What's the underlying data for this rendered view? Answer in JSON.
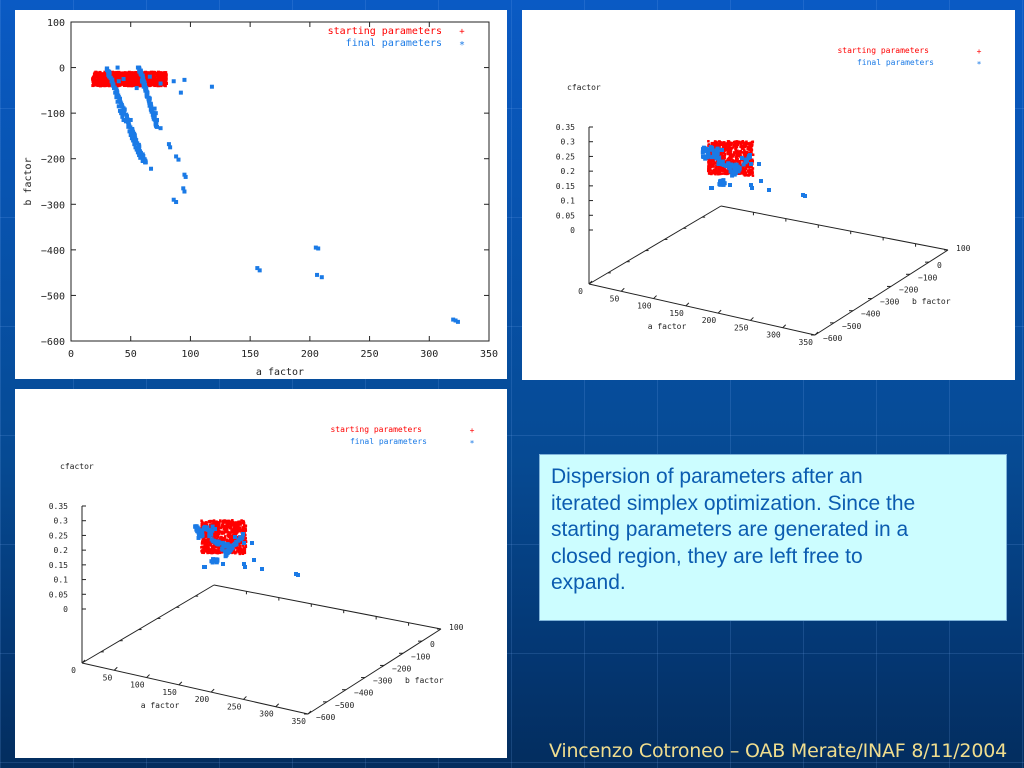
{
  "colors": {
    "starting": "#ff0000",
    "final": "#1a7ae6",
    "axis": "#222222"
  },
  "caption": {
    "lines": [
      "Dispersion of parameters after an",
      "iterated simplex optimization. Since the",
      "starting parameters are generated in a",
      "closed region, they are left free to",
      "expand."
    ]
  },
  "footer": {
    "text": "Vincenzo Cotroneo – OAB Merate/INAF 8/11/2004"
  },
  "chart_data": [
    {
      "type": "scatter",
      "title": "",
      "xlabel": "a factor",
      "ylabel": "b factor",
      "xlim": [
        0,
        350
      ],
      "ylim": [
        -600,
        100
      ],
      "xticks": [
        "0",
        "50",
        "100",
        "150",
        "200",
        "250",
        "300",
        "350"
      ],
      "yticks": [
        "100",
        "0",
        "−100",
        "−200",
        "−300",
        "−400",
        "−500",
        "−600"
      ],
      "xtick_values": [
        0,
        50,
        100,
        150,
        200,
        250,
        300,
        350
      ],
      "ytick_values": [
        100,
        0,
        -100,
        -200,
        -300,
        -400,
        -500,
        -600
      ],
      "grid": false,
      "legend": {
        "position": "top-right",
        "entries": [
          {
            "label": "starting parameters",
            "marker": "+",
            "color": "#ff0000"
          },
          {
            "label": "final parameters",
            "marker": "*",
            "color": "#1a7ae6"
          }
        ]
      },
      "series": [
        {
          "name": "starting parameters",
          "region": {
            "a": [
              18,
              80
            ],
            "b": [
              -40,
              -10
            ]
          }
        },
        {
          "name": "final parameters",
          "points": [
            [
              30,
              -2
            ],
            [
              31,
              -8
            ],
            [
              32,
              -15
            ],
            [
              33,
              -22
            ],
            [
              34,
              -30
            ],
            [
              35,
              -38
            ],
            [
              36,
              -45
            ],
            [
              37,
              -55
            ],
            [
              38,
              -65
            ],
            [
              39,
              -75
            ],
            [
              40,
              -85
            ],
            [
              41,
              -95
            ],
            [
              42,
              -100
            ],
            [
              43,
              -108
            ],
            [
              44,
              -115
            ],
            [
              46,
              -118
            ],
            [
              48,
              -130
            ],
            [
              49,
              -140
            ],
            [
              50,
              -148
            ],
            [
              51,
              -155
            ],
            [
              52,
              -160
            ],
            [
              53,
              -168
            ],
            [
              54,
              -175
            ],
            [
              55,
              -180
            ],
            [
              56,
              -186
            ],
            [
              57,
              -192
            ],
            [
              58,
              -198
            ],
            [
              60,
              -205
            ],
            [
              62,
              -208
            ],
            [
              67,
              -222
            ],
            [
              57,
              0
            ],
            [
              58,
              -8
            ],
            [
              59,
              -15
            ],
            [
              60,
              -22
            ],
            [
              61,
              -30
            ],
            [
              62,
              -38
            ],
            [
              63,
              -45
            ],
            [
              64,
              -55
            ],
            [
              66,
              -68
            ],
            [
              70,
              -90
            ],
            [
              71,
              -100
            ],
            [
              72,
              -115
            ],
            [
              72,
              -130
            ],
            [
              75,
              -133
            ],
            [
              82,
              -168
            ],
            [
              83,
              -175
            ],
            [
              88,
              -195
            ],
            [
              90,
              -202
            ],
            [
              95,
              -235
            ],
            [
              96,
              -240
            ],
            [
              94,
              -265
            ],
            [
              95,
              -272
            ],
            [
              86,
              -290
            ],
            [
              88,
              -295
            ],
            [
              39,
              0
            ],
            [
              45,
              -92
            ],
            [
              50,
              -115
            ],
            [
              40,
              -30
            ],
            [
              44,
              -25
            ],
            [
              55,
              -45
            ],
            [
              66,
              -20
            ],
            [
              75,
              -35
            ],
            [
              86,
              -30
            ],
            [
              92,
              -55
            ],
            [
              95,
              -27
            ],
            [
              118,
              -42
            ],
            [
              156,
              -440
            ],
            [
              158,
              -445
            ],
            [
              205,
              -395
            ],
            [
              207,
              -397
            ],
            [
              206,
              -455
            ],
            [
              210,
              -460
            ],
            [
              320,
              -553
            ],
            [
              322,
              -555
            ],
            [
              324,
              -558
            ]
          ]
        }
      ]
    },
    {
      "type": "scatter",
      "view": "3d",
      "xlabel": "a factor",
      "ylabel": "b factor",
      "zlabel": "cfactor",
      "xlim": [
        0,
        350
      ],
      "ylim": [
        -600,
        100
      ],
      "zlim": [
        0,
        0.35
      ],
      "xticks": [
        "0",
        "50",
        "100",
        "150",
        "200",
        "250",
        "300",
        "350"
      ],
      "yticks": [
        "100",
        "0",
        "−100",
        "−200",
        "−300",
        "−400",
        "−500",
        "−600"
      ],
      "zticks": [
        "0.35",
        "0.3",
        "0.25",
        "0.2",
        "0.15",
        "0.1",
        "0.05",
        "0"
      ],
      "legend": {
        "position": "top-right",
        "entries": [
          {
            "label": "starting parameters",
            "marker": "+",
            "color": "#ff0000"
          },
          {
            "label": "final parameters",
            "marker": "*",
            "color": "#1a7ae6"
          }
        ]
      }
    },
    {
      "type": "scatter",
      "view": "3d",
      "xlabel": "a factor",
      "ylabel": "b factor",
      "zlabel": "cfactor",
      "xlim": [
        0,
        350
      ],
      "ylim": [
        -600,
        100
      ],
      "zlim": [
        0,
        0.35
      ],
      "xticks": [
        "0",
        "50",
        "100",
        "150",
        "200",
        "250",
        "300",
        "350"
      ],
      "yticks": [
        "100",
        "0",
        "−100",
        "−200",
        "−300",
        "−400",
        "−500",
        "−600"
      ],
      "zticks": [
        "0.35",
        "0.3",
        "0.25",
        "0.2",
        "0.15",
        "0.1",
        "0.05",
        "0"
      ],
      "legend": {
        "position": "top-right",
        "entries": [
          {
            "label": "starting parameters",
            "marker": "+",
            "color": "#ff0000"
          },
          {
            "label": "final parameters",
            "marker": "*",
            "color": "#1a7ae6"
          }
        ]
      }
    }
  ]
}
